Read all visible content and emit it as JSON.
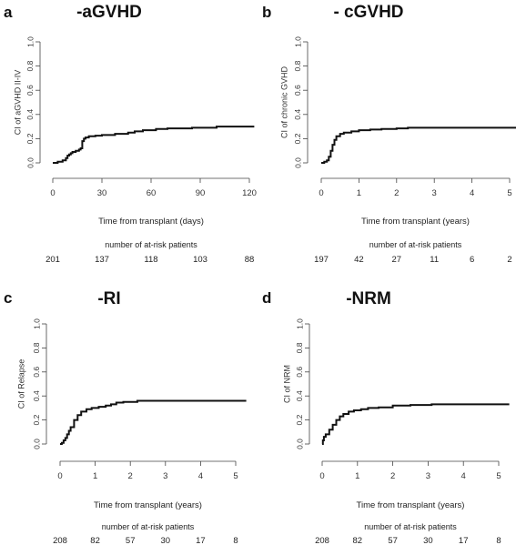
{
  "chart_data": [
    {
      "type": "line",
      "panel_letter": "a",
      "title": "-aGVHD",
      "ylabel": "CI of aGVHD II-IV",
      "xlabel": "Time from transplant (days)",
      "xlim": [
        0,
        120
      ],
      "ylim": [
        0,
        1
      ],
      "x_ticks": [
        0,
        30,
        60,
        90,
        120
      ],
      "y_ticks": [
        "0.0",
        "0.2",
        "0.4",
        "0.6",
        "0.8",
        "1.0"
      ],
      "series": [
        {
          "points": [
            [
              0,
              0
            ],
            [
              3,
              0.01
            ],
            [
              6,
              0.02
            ],
            [
              8,
              0.04
            ],
            [
              9,
              0.06
            ],
            [
              10,
              0.07
            ],
            [
              11,
              0.08
            ],
            [
              12,
              0.09
            ],
            [
              14,
              0.1
            ],
            [
              16,
              0.11
            ],
            [
              17,
              0.12
            ],
            [
              18,
              0.18
            ],
            [
              19,
              0.2
            ],
            [
              20,
              0.21
            ],
            [
              22,
              0.22
            ],
            [
              26,
              0.225
            ],
            [
              30,
              0.23
            ],
            [
              38,
              0.24
            ],
            [
              46,
              0.25
            ],
            [
              50,
              0.26
            ],
            [
              55,
              0.27
            ],
            [
              63,
              0.28
            ],
            [
              70,
              0.285
            ],
            [
              85,
              0.29
            ],
            [
              100,
              0.3
            ],
            [
              123,
              0.3
            ]
          ]
        }
      ],
      "risk_table": {
        "title": "number of at-risk patients",
        "at": [
          0,
          30,
          60,
          90,
          120
        ],
        "values": [
          "201",
          "137",
          "118",
          "103",
          "88"
        ]
      }
    },
    {
      "type": "line",
      "panel_letter": "b",
      "title": "- cGVHD",
      "ylabel": "CI of chronic GVHD",
      "xlabel": "Time from transplant (years)",
      "xlim": [
        0,
        5
      ],
      "ylim": [
        0,
        1
      ],
      "x_ticks": [
        0,
        1,
        2,
        3,
        4,
        5
      ],
      "y_ticks": [
        "0.0",
        "0.2",
        "0.4",
        "0.6",
        "0.8",
        "1.0"
      ],
      "series": [
        {
          "points": [
            [
              0,
              0
            ],
            [
              0.08,
              0.01
            ],
            [
              0.15,
              0.02
            ],
            [
              0.2,
              0.05
            ],
            [
              0.25,
              0.1
            ],
            [
              0.3,
              0.15
            ],
            [
              0.35,
              0.19
            ],
            [
              0.4,
              0.22
            ],
            [
              0.5,
              0.24
            ],
            [
              0.6,
              0.25
            ],
            [
              0.8,
              0.26
            ],
            [
              1.0,
              0.27
            ],
            [
              1.3,
              0.275
            ],
            [
              1.6,
              0.28
            ],
            [
              2.0,
              0.285
            ],
            [
              2.3,
              0.29
            ],
            [
              5.3,
              0.29
            ]
          ]
        }
      ],
      "risk_table": {
        "title": "number of at-risk patients",
        "at": [
          0,
          1,
          2,
          3,
          4,
          5
        ],
        "values": [
          "197",
          "42",
          "27",
          "11",
          "6",
          "2"
        ]
      }
    },
    {
      "type": "line",
      "panel_letter": "c",
      "title": "-RI",
      "ylabel": "CI of Relapse",
      "xlabel": "Time from transplant (years)",
      "xlim": [
        0,
        5
      ],
      "ylim": [
        0,
        1
      ],
      "x_ticks": [
        0,
        1,
        2,
        3,
        4,
        5
      ],
      "y_ticks": [
        "0.0",
        "0.2",
        "0.4",
        "0.6",
        "0.8",
        "1.0"
      ],
      "series": [
        {
          "points": [
            [
              0,
              0
            ],
            [
              0.05,
              0.01
            ],
            [
              0.1,
              0.03
            ],
            [
              0.15,
              0.05
            ],
            [
              0.2,
              0.08
            ],
            [
              0.25,
              0.11
            ],
            [
              0.3,
              0.14
            ],
            [
              0.4,
              0.2
            ],
            [
              0.5,
              0.24
            ],
            [
              0.6,
              0.27
            ],
            [
              0.75,
              0.29
            ],
            [
              0.9,
              0.3
            ],
            [
              1.1,
              0.31
            ],
            [
              1.3,
              0.32
            ],
            [
              1.45,
              0.33
            ],
            [
              1.6,
              0.345
            ],
            [
              1.8,
              0.35
            ],
            [
              2.2,
              0.36
            ],
            [
              5.3,
              0.36
            ]
          ]
        }
      ],
      "risk_table": {
        "title": "number of at-risk patients",
        "at": [
          0,
          1,
          2,
          3,
          4,
          5
        ],
        "values": [
          "208",
          "82",
          "57",
          "30",
          "17",
          "8"
        ]
      }
    },
    {
      "type": "line",
      "panel_letter": "d",
      "title": "-NRM",
      "ylabel": "CI of NRM",
      "xlabel": "Time from transplant (years)",
      "xlim": [
        0,
        5
      ],
      "ylim": [
        0,
        1
      ],
      "x_ticks": [
        0,
        1,
        2,
        3,
        4,
        5
      ],
      "y_ticks": [
        "0.0",
        "0.2",
        "0.4",
        "0.6",
        "0.8",
        "1.0"
      ],
      "series": [
        {
          "points": [
            [
              0,
              0
            ],
            [
              0.02,
              0.03
            ],
            [
              0.05,
              0.06
            ],
            [
              0.1,
              0.08
            ],
            [
              0.2,
              0.12
            ],
            [
              0.3,
              0.16
            ],
            [
              0.4,
              0.2
            ],
            [
              0.5,
              0.23
            ],
            [
              0.6,
              0.25
            ],
            [
              0.75,
              0.27
            ],
            [
              0.9,
              0.28
            ],
            [
              1.1,
              0.29
            ],
            [
              1.3,
              0.3
            ],
            [
              1.6,
              0.305
            ],
            [
              2.0,
              0.32
            ],
            [
              2.5,
              0.325
            ],
            [
              3.1,
              0.33
            ],
            [
              5.3,
              0.33
            ]
          ]
        }
      ],
      "risk_table": {
        "title": "number of at-risk patients",
        "at": [
          0,
          1,
          2,
          3,
          4,
          5
        ],
        "values": [
          "208",
          "82",
          "57",
          "30",
          "17",
          "8"
        ]
      }
    }
  ]
}
